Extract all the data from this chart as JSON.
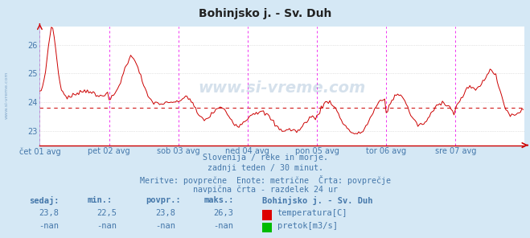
{
  "title": "Bohinjsko j. - Sv. Duh",
  "bg_color": "#d5e8f5",
  "plot_bg_color": "#ffffff",
  "line_color": "#cc0000",
  "avg_value": 23.8,
  "yticks": [
    23,
    24,
    25,
    26
  ],
  "ylim_min": 22.5,
  "ylim_max": 26.65,
  "x_labels": [
    "čet 01 avg",
    "pet 02 avg",
    "sob 03 avg",
    "ned 04 avg",
    "pon 05 avg",
    "tor 06 avg",
    "sre 07 avg"
  ],
  "n_points": 336,
  "vline_color": "#ee00ee",
  "grid_color": "#cccccc",
  "text_color": "#4477aa",
  "subtitle_lines": [
    "Slovenija / reke in morje.",
    "zadnji teden / 30 minut.",
    "Meritve: povprečne  Enote: metrične  Črta: povprečje",
    "navpična črta - razdelek 24 ur"
  ],
  "stats_labels": [
    "sedaj:",
    "min.:",
    "povpr.:",
    "maks.:"
  ],
  "stats_values": [
    "23,8",
    "22,5",
    "23,8",
    "26,3"
  ],
  "stats_values2": [
    "-nan",
    "-nan",
    "-nan",
    "-nan"
  ],
  "legend_station": "Bohinjsko j. - Sv. Duh",
  "legend_temp_label": "temperatura[C]",
  "legend_flow_label": "pretok[m3/s]",
  "temp_color": "#dd0000",
  "flow_color": "#00bb00",
  "watermark": "www.si-vreme.com",
  "left_label": "www.si-vreme.com"
}
